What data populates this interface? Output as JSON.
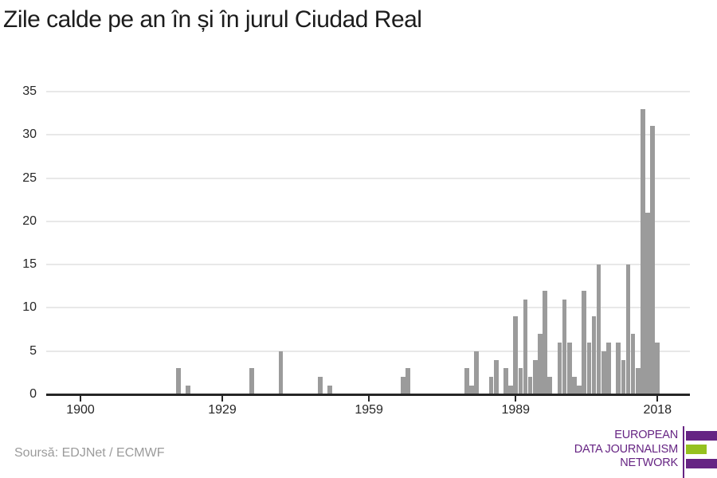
{
  "title": "Zile calde pe an în și în jurul Ciudad Real",
  "source": "Soursă: EDJNet / ECMWF",
  "logo": {
    "lines": [
      "EUROPEAN",
      "DATA JOURNALISM",
      "NETWORK"
    ],
    "purple": "#662483",
    "green": "#95c11f"
  },
  "colors": {
    "bar": "#9b9b9b",
    "grid": "#e8e8e8",
    "axis": "#262626",
    "title_text": "#1c1c1c",
    "source_text": "#9b9b9b"
  },
  "chart_data": {
    "type": "bar",
    "title": "Zile calde pe an în și în jurul Ciudad Real",
    "xlabel": "",
    "ylabel": "",
    "ylim": [
      0,
      35
    ],
    "yticks": [
      0,
      5,
      10,
      15,
      20,
      25,
      30,
      35
    ],
    "xticks": [
      1900,
      1929,
      1959,
      1989,
      2018
    ],
    "xlim": [
      1893,
      2025
    ],
    "grid": true,
    "legend": "none",
    "bar_color": "#9b9b9b",
    "series": [
      {
        "name": "zile calde",
        "points": [
          [
            1920,
            3
          ],
          [
            1922,
            1
          ],
          [
            1935,
            3
          ],
          [
            1941,
            5
          ],
          [
            1949,
            2
          ],
          [
            1951,
            1
          ],
          [
            1966,
            2
          ],
          [
            1967,
            3
          ],
          [
            1979,
            3
          ],
          [
            1980,
            1
          ],
          [
            1981,
            5
          ],
          [
            1984,
            2
          ],
          [
            1985,
            4
          ],
          [
            1987,
            3
          ],
          [
            1988,
            1
          ],
          [
            1989,
            9
          ],
          [
            1990,
            3
          ],
          [
            1991,
            11
          ],
          [
            1992,
            2
          ],
          [
            1993,
            4
          ],
          [
            1994,
            7
          ],
          [
            1995,
            12
          ],
          [
            1996,
            2
          ],
          [
            1998,
            6
          ],
          [
            1999,
            11
          ],
          [
            2000,
            6
          ],
          [
            2001,
            2
          ],
          [
            2002,
            1
          ],
          [
            2003,
            12
          ],
          [
            2004,
            6
          ],
          [
            2005,
            9
          ],
          [
            2006,
            15
          ],
          [
            2007,
            5
          ],
          [
            2008,
            6
          ],
          [
            2010,
            6
          ],
          [
            2011,
            4
          ],
          [
            2012,
            15
          ],
          [
            2013,
            7
          ],
          [
            2014,
            3
          ],
          [
            2015,
            33
          ],
          [
            2016,
            21
          ],
          [
            2017,
            31
          ],
          [
            2018,
            6
          ]
        ]
      }
    ]
  }
}
